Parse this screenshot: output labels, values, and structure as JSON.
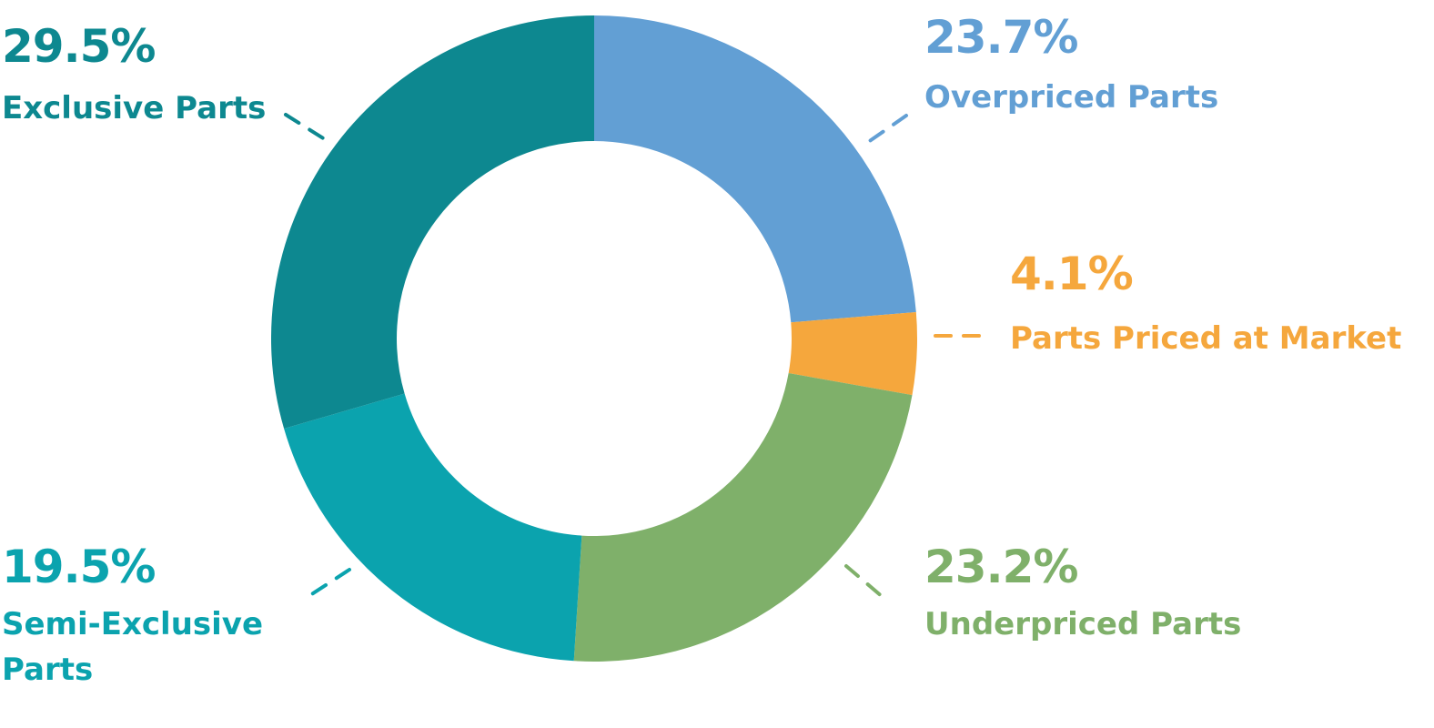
{
  "chart_data": {
    "type": "pie",
    "variant": "donut",
    "title": "",
    "legend": "none",
    "start_angle_degrees": 0,
    "direction": "clockwise",
    "slices": [
      {
        "label": "Overpriced Parts",
        "label_lines": [
          "Overpriced Parts"
        ],
        "value": 23.7,
        "value_label": "23.7%",
        "color": "#629fd4"
      },
      {
        "label": "Parts Priced at Market",
        "label_lines": [
          "Parts Priced at Market"
        ],
        "value": 4.1,
        "value_label": "4.1%",
        "color": "#f5a73d"
      },
      {
        "label": "Underpriced Parts",
        "label_lines": [
          "Underpriced Parts"
        ],
        "value": 23.2,
        "value_label": "23.2%",
        "color": "#7fb06a"
      },
      {
        "label": "Semi-Exclusive Parts",
        "label_lines": [
          "Semi-Exclusive",
          "Parts"
        ],
        "value": 19.5,
        "value_label": "19.5%",
        "color": "#0ba3ae"
      },
      {
        "label": "Exclusive Parts",
        "label_lines": [
          "Exclusive Parts"
        ],
        "value": 29.5,
        "value_label": "29.5%",
        "color": "#0d8890"
      }
    ]
  }
}
